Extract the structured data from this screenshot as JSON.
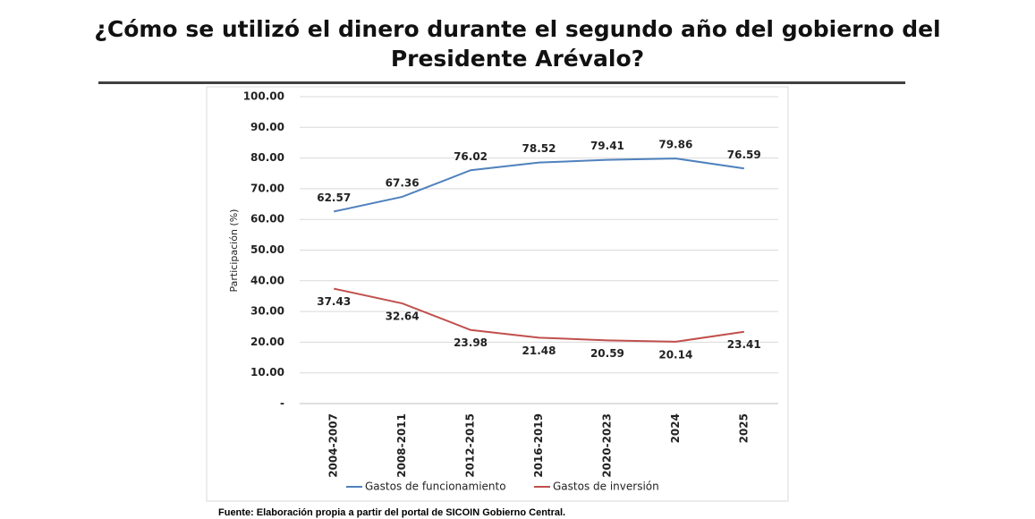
{
  "chart_data": {
    "type": "line",
    "title": "¿Cómo se utilizó el dinero durante el segundo año del gobierno del Presidente Arévalo?",
    "y_label": "Participación (%)",
    "source": "Fuente: Elaboración propia a partir del portal de SICOIN Gobierno Central.",
    "categories": [
      "2004-2007",
      "2008-2011",
      "2012-2015",
      "2016-2019",
      "2020-2023",
      "2024",
      "2025"
    ],
    "series": [
      {
        "name": "Gastos de funcionamiento",
        "color": "#4f81bd",
        "values": [
          62.57,
          67.36,
          76.02,
          78.52,
          79.41,
          79.86,
          76.59
        ]
      },
      {
        "name": "Gastos de inversión",
        "color": "#c0504d",
        "values": [
          37.43,
          32.64,
          23.98,
          21.48,
          20.59,
          20.14,
          23.41
        ]
      }
    ],
    "ylim": [
      0,
      100
    ],
    "yticks": [
      {
        "value": 0,
        "label": "-"
      },
      {
        "value": 10,
        "label": "10.00"
      },
      {
        "value": 20,
        "label": "20.00"
      },
      {
        "value": 30,
        "label": "30.00"
      },
      {
        "value": 40,
        "label": "40.00"
      },
      {
        "value": 50,
        "label": "50.00"
      },
      {
        "value": 60,
        "label": "60.00"
      },
      {
        "value": 70,
        "label": "70.00"
      },
      {
        "value": 80,
        "label": "80.00"
      },
      {
        "value": 90,
        "label": "90.00"
      },
      {
        "value": 100,
        "label": "100.00"
      }
    ],
    "grid": true,
    "legend": "bottom"
  }
}
